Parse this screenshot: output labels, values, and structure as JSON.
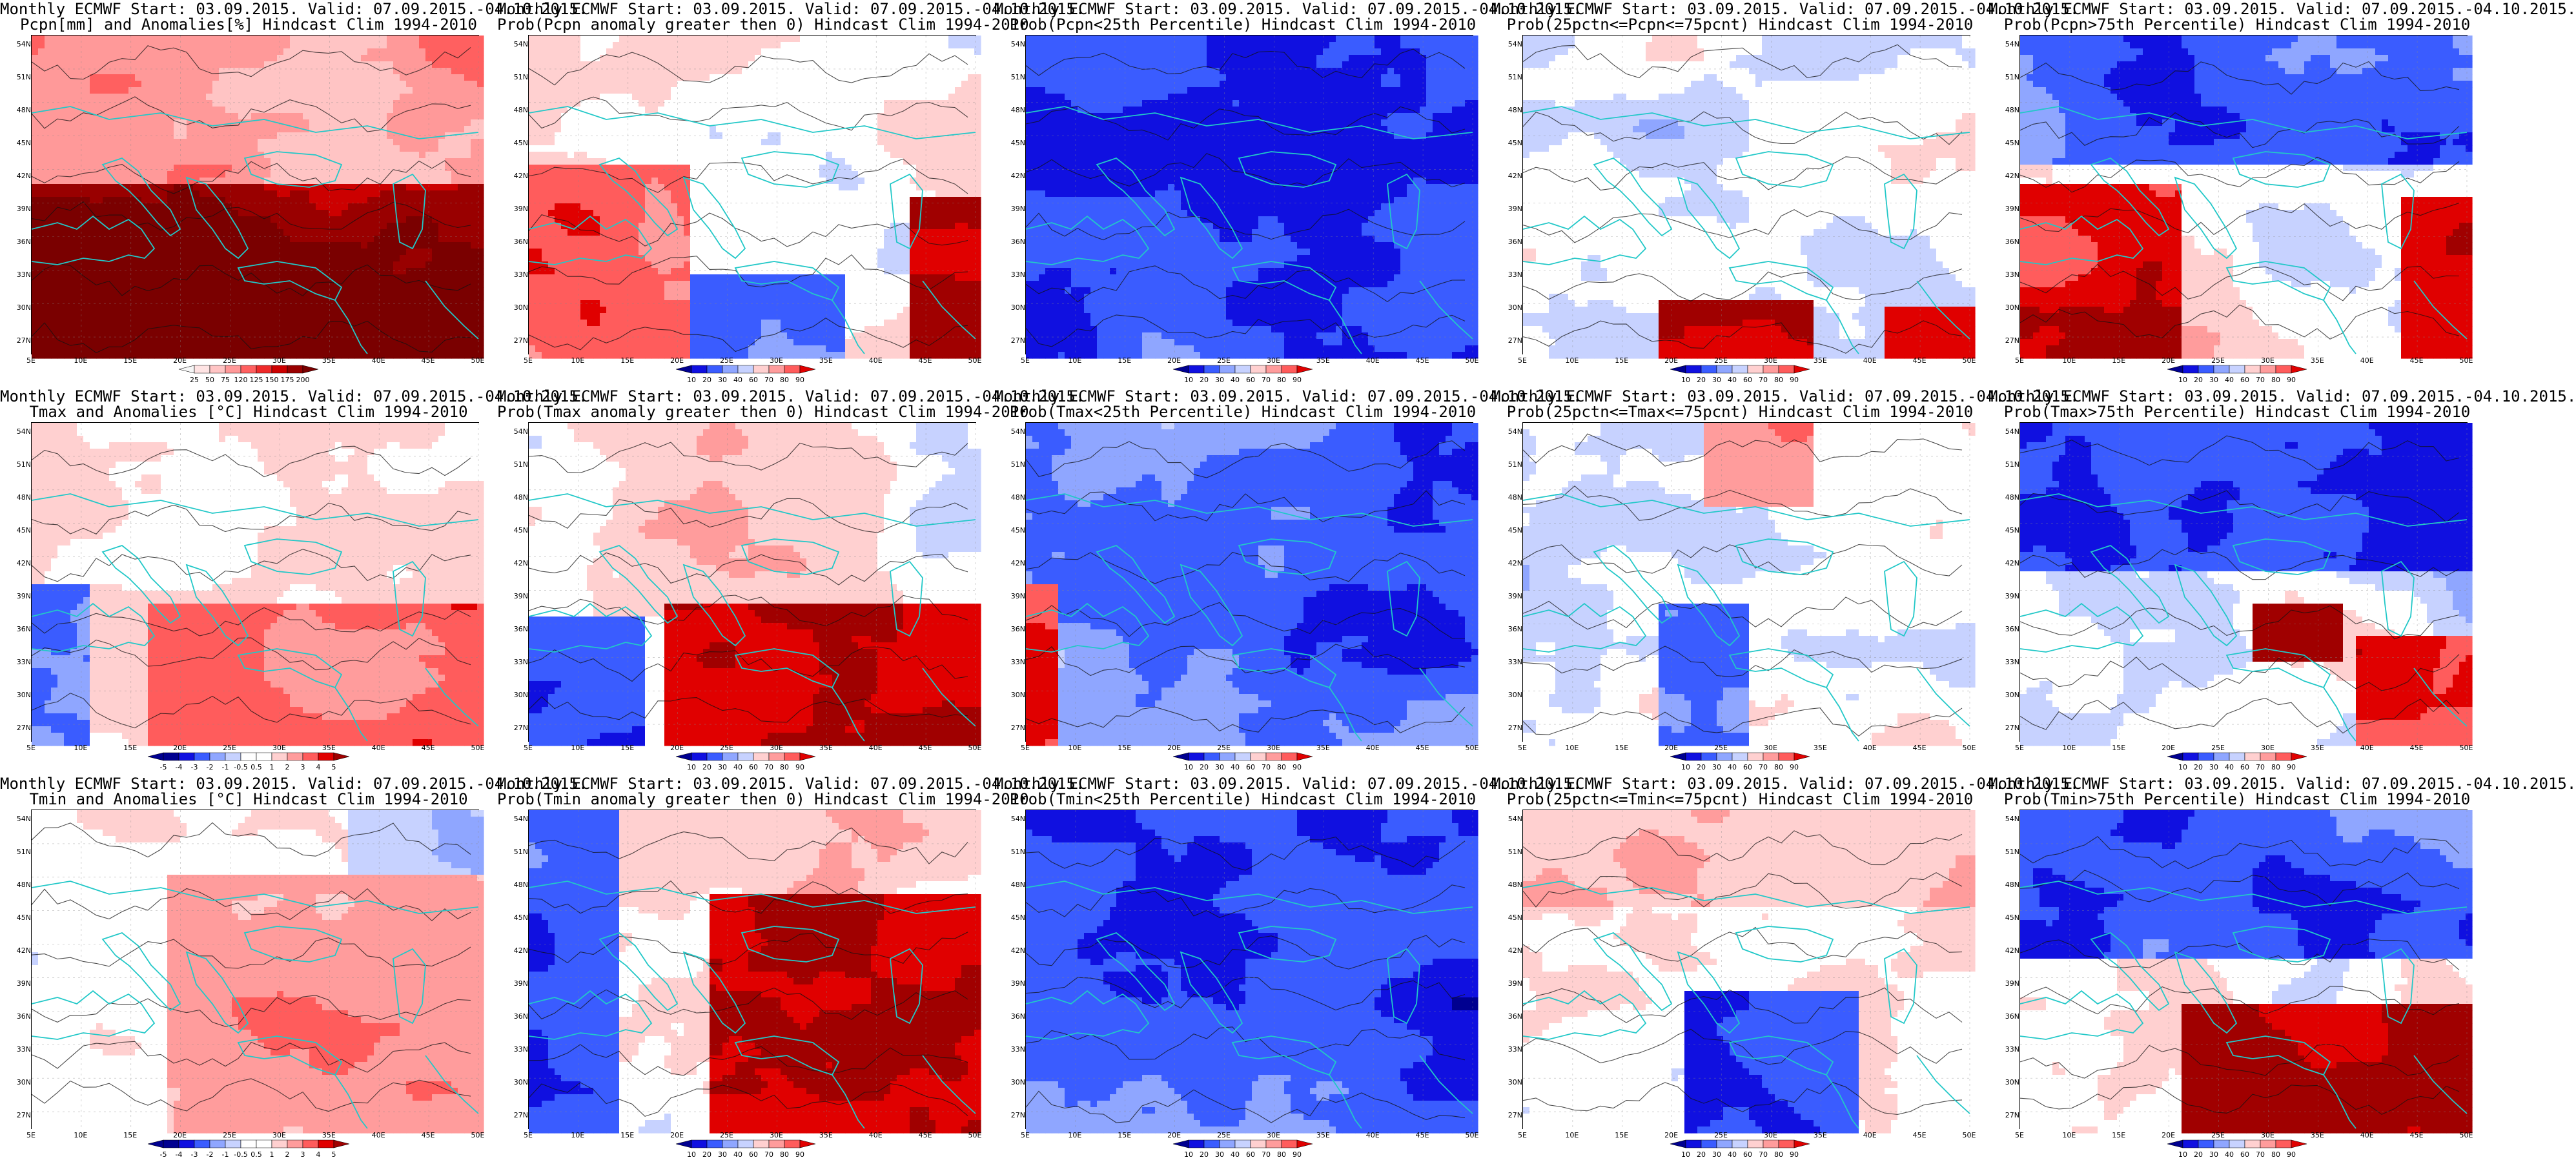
{
  "palettes": {
    "precip": [
      "#f6f6f6",
      "#ffe4e4",
      "#ffc4c4",
      "#ff9999",
      "#ff6060",
      "#ee2a2a",
      "#cc0000",
      "#990000",
      "#7a0000"
    ],
    "anomaly": [
      "#000090",
      "#1010e0",
      "#3a5cff",
      "#8fa6ff",
      "#c7d2ff",
      "#ffffff",
      "#ffd0d0",
      "#ff9c9c",
      "#ff5c5c",
      "#e00000",
      "#a00000"
    ],
    "prob": [
      "#000090",
      "#1010e0",
      "#3a5cff",
      "#8fa6ff",
      "#c7d2ff",
      "#ffffff",
      "#ffd0d0",
      "#ff9c9c",
      "#ff5c5c",
      "#e00000",
      "#a00000"
    ]
  },
  "colors": {
    "coast": "#22c8c8",
    "contour": "#111111",
    "frame": "#000000"
  },
  "lat_labels": [
    "54N",
    "51N",
    "48N",
    "45N",
    "42N",
    "39N",
    "36N",
    "33N",
    "30N",
    "27N"
  ],
  "lon_labels": [
    "5E",
    "10E",
    "15E",
    "20E",
    "25E",
    "30E",
    "35E",
    "40E",
    "45E",
    "50E"
  ],
  "panels": [
    {
      "t1": "Monthly ECMWF Start: 03.09.2015. Valid: 07.09.2015.-04.10.2015.",
      "t2": "Pcpn[mm] and Anomalies[%] Hindcast Clim 1994-2010",
      "pattern": "precip",
      "cbar": [
        "25",
        "50",
        "75",
        "120",
        "125",
        "150",
        "175",
        "200"
      ],
      "palette": "precip"
    },
    {
      "t1": "Monthly ECMWF Start: 03.09.2015. Valid: 07.09.2015.-04.10.2015.",
      "t2": "Prob(Pcpn anomaly greater then 0) Hindcast Clim 1994-2010",
      "pattern": "precipProb",
      "cbar": [
        "10",
        "20",
        "30",
        "40",
        "60",
        "70",
        "80",
        "90"
      ],
      "palette": "prob"
    },
    {
      "t1": "Monthly ECMWF Start: 03.09.2015. Valid: 07.09.2015.-04.10.2015.",
      "t2": "Prob(Pcpn<25th Percentile) Hindcast Clim 1994-2010",
      "pattern": "blueAll",
      "cbar": [
        "10",
        "20",
        "30",
        "40",
        "60",
        "70",
        "80",
        "90"
      ],
      "palette": "prob"
    },
    {
      "t1": "Monthly ECMWF Start: 03.09.2015. Valid: 07.09.2015.-04.10.2015.",
      "t2": "Prob(25pctn<=Pcpn<=75pcnt) Hindcast Clim 1994-2010",
      "pattern": "mixedRedSouth",
      "cbar": [
        "10",
        "20",
        "30",
        "40",
        "60",
        "70",
        "80",
        "90"
      ],
      "palette": "prob"
    },
    {
      "t1": "Monthly ECMWF Start: 03.09.2015. Valid: 07.09.2015.-04.10.2015.",
      "t2": "Prob(Pcpn>75th Percentile) Hindcast Clim 1994-2010",
      "pattern": "blueNorthRedSouth",
      "cbar": [
        "10",
        "20",
        "30",
        "40",
        "60",
        "70",
        "80",
        "90"
      ],
      "palette": "prob"
    },
    {
      "t1": "Monthly ECMWF Start: 03.09.2015. Valid: 07.09.2015.-04.10.2015.",
      "t2": "Tmax and Anomalies [°C] Hindcast Clim 1994-2010",
      "pattern": "anomWarmSouth",
      "cbar": [
        "-5",
        "-4",
        "-3",
        "-2",
        "-1",
        "-0.5",
        "0.5",
        "1",
        "2",
        "3",
        "4",
        "5"
      ],
      "palette": "anomaly"
    },
    {
      "t1": "Monthly ECMWF Start: 03.09.2015. Valid: 07.09.2015.-04.10.2015.",
      "t2": "Prob(Tmax anomaly greater then 0) Hindcast Clim 1994-2010",
      "pattern": "redSouthEast",
      "cbar": [
        "10",
        "20",
        "30",
        "40",
        "60",
        "70",
        "80",
        "90"
      ],
      "palette": "prob"
    },
    {
      "t1": "Monthly ECMWF Start: 03.09.2015. Valid: 07.09.2015.-04.10.2015.",
      "t2": "Prob(Tmax<25th Percentile) Hindcast Clim 1994-2010",
      "pattern": "blueMostly",
      "cbar": [
        "10",
        "20",
        "30",
        "40",
        "60",
        "70",
        "80",
        "90"
      ],
      "palette": "prob"
    },
    {
      "t1": "Monthly ECMWF Start: 03.09.2015. Valid: 07.09.2015.-04.10.2015.",
      "t2": "Prob(25pctn<=Tmax<=75pcnt) Hindcast Clim 1994-2010",
      "pattern": "mixedPale",
      "cbar": [
        "10",
        "20",
        "30",
        "40",
        "60",
        "70",
        "80",
        "90"
      ],
      "palette": "prob"
    },
    {
      "t1": "Monthly ECMWF Start: 03.09.2015. Valid: 07.09.2015.-04.10.2015.",
      "t2": "Prob(Tmax>75th Percentile) Hindcast Clim 1994-2010",
      "pattern": "blueNorthRedCenter",
      "cbar": [
        "10",
        "20",
        "30",
        "40",
        "60",
        "70",
        "80",
        "90"
      ],
      "palette": "prob"
    },
    {
      "t1": "Monthly ECMWF Start: 03.09.2015. Valid: 07.09.2015.-04.10.2015.",
      "t2": "Tmin and Anomalies [°C] Hindcast Clim 1994-2010",
      "pattern": "anomPale",
      "cbar": [
        "-5",
        "-4",
        "-3",
        "-2",
        "-1",
        "-0.5",
        "0.5",
        "1",
        "2",
        "3",
        "4",
        "5"
      ],
      "palette": "anomaly"
    },
    {
      "t1": "Monthly ECMWF Start: 03.09.2015. Valid: 07.09.2015.-04.10.2015.",
      "t2": "Prob(Tmin anomaly greater then 0) Hindcast Clim 1994-2010",
      "pattern": "redEastStrong",
      "cbar": [
        "10",
        "20",
        "30",
        "40",
        "60",
        "70",
        "80",
        "90"
      ],
      "palette": "prob"
    },
    {
      "t1": "Monthly ECMWF Start: 03.09.2015. Valid: 07.09.2015.-04.10.2015.",
      "t2": "Prob(Tmin<25th Percentile) Hindcast Clim 1994-2010",
      "pattern": "blueAll",
      "cbar": [
        "10",
        "20",
        "30",
        "40",
        "60",
        "70",
        "80",
        "90"
      ],
      "palette": "prob"
    },
    {
      "t1": "Monthly ECMWF Start: 03.09.2015. Valid: 07.09.2015.-04.10.2015.",
      "t2": "Prob(25pctn<=Tmin<=75pcnt) Hindcast Clim 1994-2010",
      "pattern": "blueSouthEast",
      "cbar": [
        "10",
        "20",
        "30",
        "40",
        "60",
        "70",
        "80",
        "90"
      ],
      "palette": "prob"
    },
    {
      "t1": "Monthly ECMWF Start: 03.09.2015. Valid: 07.09.2015.-04.10.2015.",
      "t2": "Prob(Tmin>75th Percentile) Hindcast Clim 1994-2010",
      "pattern": "blueNorthRedSouthEast",
      "cbar": [
        "10",
        "20",
        "30",
        "40",
        "60",
        "70",
        "80",
        "90"
      ],
      "palette": "prob"
    }
  ]
}
